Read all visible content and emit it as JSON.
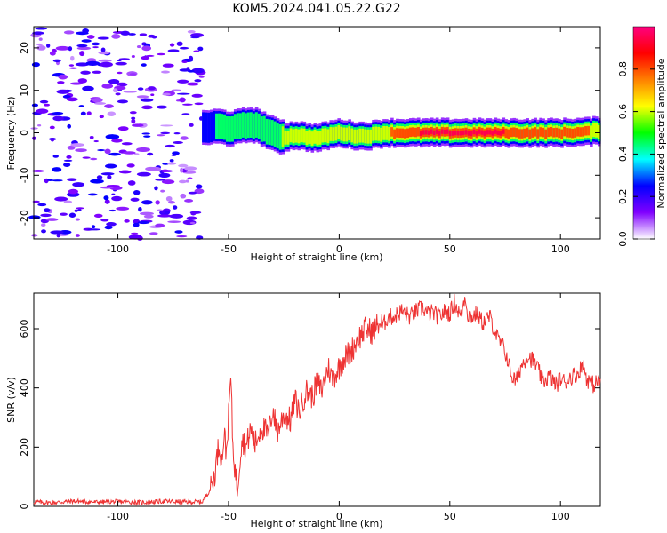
{
  "title": "KOM5.2024.041.05.22.G22",
  "chart_data": [
    {
      "type": "heatmap",
      "xlabel": "Height of straight line (km)",
      "ylabel": "Frequency (Hz)",
      "xlim": [
        -138,
        118
      ],
      "ylim": [
        -25,
        25
      ],
      "xticks": [
        -100,
        -50,
        0,
        50,
        100
      ],
      "yticks": [
        -20,
        -10,
        0,
        10,
        20
      ],
      "colorbar": {
        "label": "Normalized spectral amplitude",
        "range": [
          0,
          1
        ],
        "ticks": [
          "0.0",
          "0.2",
          "0.4",
          "0.6",
          "0.8"
        ],
        "colors": [
          "#ffffff",
          "#8000ff",
          "#0000ff",
          "#00ffff",
          "#00ff00",
          "#ffff00",
          "#ff8000",
          "#ff0000",
          "#ff0080"
        ]
      },
      "noise_region": {
        "x_range": [
          -138,
          -62
        ],
        "f_range": [
          -25,
          25
        ],
        "amplitude": [
          0.05,
          0.25
        ]
      },
      "signal_ridge": [
        {
          "x": -62,
          "f": 1.2,
          "amp": 0.35
        },
        {
          "x": -55,
          "f": 1.5,
          "amp": 0.45
        },
        {
          "x": -50,
          "f": 1.0,
          "amp": 0.45
        },
        {
          "x": -45,
          "f": 1.5,
          "amp": 0.45
        },
        {
          "x": -40,
          "f": 2.0,
          "amp": 0.45
        },
        {
          "x": -35,
          "f": 1.0,
          "amp": 0.5
        },
        {
          "x": -30,
          "f": -0.5,
          "amp": 0.55
        },
        {
          "x": -25,
          "f": -1.0,
          "amp": 0.6
        },
        {
          "x": -20,
          "f": -0.5,
          "amp": 0.6
        },
        {
          "x": -15,
          "f": -1.0,
          "amp": 0.6
        },
        {
          "x": -10,
          "f": -1.2,
          "amp": 0.6
        },
        {
          "x": -5,
          "f": -0.5,
          "amp": 0.65
        },
        {
          "x": 0,
          "f": 0.0,
          "amp": 0.7
        },
        {
          "x": 5,
          "f": -0.5,
          "amp": 0.7
        },
        {
          "x": 10,
          "f": -0.8,
          "amp": 0.7
        },
        {
          "x": 15,
          "f": -0.5,
          "amp": 0.7
        },
        {
          "x": 20,
          "f": 0.0,
          "amp": 0.75
        },
        {
          "x": 25,
          "f": 0.0,
          "amp": 0.8
        },
        {
          "x": 30,
          "f": 0.0,
          "amp": 0.9
        },
        {
          "x": 40,
          "f": 0.0,
          "amp": 0.95
        },
        {
          "x": 50,
          "f": 0.0,
          "amp": 0.95
        },
        {
          "x": 60,
          "f": 0.0,
          "amp": 0.95
        },
        {
          "x": 70,
          "f": 0.0,
          "amp": 0.95
        },
        {
          "x": 80,
          "f": 0.0,
          "amp": 0.9
        },
        {
          "x": 90,
          "f": 0.0,
          "amp": 0.85
        },
        {
          "x": 100,
          "f": 0.0,
          "amp": 0.85
        },
        {
          "x": 110,
          "f": 0.2,
          "amp": 0.8
        },
        {
          "x": 118,
          "f": 0.5,
          "amp": 0.75
        }
      ]
    },
    {
      "type": "line",
      "xlabel": "Height of straight line (km)",
      "ylabel": "SNR (v/v)",
      "xlim": [
        -138,
        118
      ],
      "ylim": [
        0,
        720
      ],
      "xticks": [
        -100,
        -50,
        0,
        50,
        100
      ],
      "yticks": [
        0,
        200,
        400,
        600
      ],
      "color": "#ee3333",
      "series": [
        {
          "x": [
            -138,
            -130,
            -120,
            -110,
            -100,
            -90,
            -80,
            -70,
            -62,
            -58,
            -56,
            -55,
            -54,
            -53,
            -52,
            -51,
            -50,
            -49,
            -48,
            -47,
            -46,
            -45,
            -44,
            -42,
            -40,
            -38,
            -35,
            -32,
            -30,
            -28,
            -25,
            -22,
            -20,
            -18,
            -15,
            -12,
            -10,
            -8,
            -5,
            -3,
            0,
            2,
            5,
            8,
            10,
            12,
            15,
            18,
            20,
            22,
            25,
            28,
            30,
            32,
            35,
            38,
            40,
            42,
            45,
            48,
            50,
            52,
            55,
            57,
            58,
            60,
            62,
            65,
            68,
            70,
            72,
            74,
            76,
            78,
            80,
            82,
            85,
            88,
            90,
            92,
            95,
            98,
            100,
            102,
            105,
            108,
            110,
            112,
            115,
            118
          ],
          "y": [
            15,
            12,
            18,
            14,
            16,
            13,
            17,
            15,
            15,
            60,
            120,
            180,
            210,
            150,
            250,
            180,
            300,
            440,
            200,
            120,
            60,
            150,
            230,
            200,
            260,
            210,
            270,
            240,
            330,
            250,
            310,
            290,
            360,
            320,
            390,
            370,
            420,
            390,
            470,
            430,
            470,
            500,
            520,
            560,
            580,
            600,
            590,
            620,
            610,
            640,
            640,
            660,
            650,
            640,
            660,
            670,
            650,
            655,
            640,
            660,
            650,
            690,
            640,
            715,
            650,
            640,
            650,
            620,
            640,
            600,
            560,
            540,
            500,
            440,
            420,
            470,
            510,
            490,
            460,
            420,
            440,
            410,
            430,
            420,
            440,
            450,
            480,
            430,
            410,
            430
          ]
        }
      ]
    }
  ]
}
